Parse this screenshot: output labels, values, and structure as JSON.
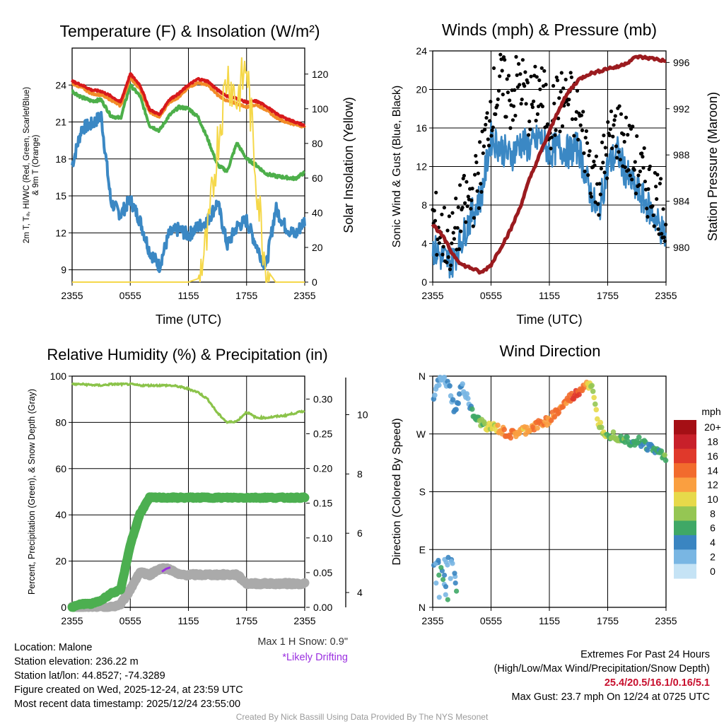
{
  "panels": {
    "temp": {
      "title": "Temperature (F) & Insolation (W/m²)",
      "ylabel_line1": "2m T, Tₐ, HI/WC (Red, Green, Scarlet/Blue)",
      "ylabel_line2": "& 9m T (Orange)",
      "y2label": "Solar Insolation (Yellow)",
      "xlabel": "Time (UTC)",
      "yticks": [
        9,
        12,
        15,
        18,
        21,
        24
      ],
      "ylim": [
        8,
        27
      ],
      "y2ticks": [
        0,
        20,
        40,
        60,
        80,
        100,
        120
      ],
      "y2lim": [
        0,
        135
      ]
    },
    "wind": {
      "title": "Winds (mph) & Pressure (mb)",
      "ylabel": "Sonic Wind & Gust (Blue, Black)",
      "y2label": "Station Pressure (Maroon)",
      "xlabel": "Time (UTC)",
      "yticks": [
        0,
        4,
        8,
        12,
        16,
        20,
        24
      ],
      "ylim": [
        0,
        24
      ],
      "y2ticks": [
        980,
        984,
        988,
        992,
        996
      ],
      "y2lim": [
        977,
        997
      ]
    },
    "rh": {
      "title": "Relative Humidity (%) & Precipitation (in)",
      "ylabel": "Percent, Precipitation (Green), & Snow Depth (Gray)",
      "yticks": [
        0,
        20,
        40,
        60,
        80,
        100
      ],
      "ylim": [
        0,
        100
      ],
      "y2ticks": [
        "0.00",
        "0.05",
        "0.10",
        "0.15",
        "0.20",
        "0.25",
        "0.30"
      ],
      "y2lim": [
        0,
        0.333
      ],
      "y3ticks": [
        4,
        6,
        8,
        10
      ],
      "y3lim": [
        3.5,
        11.3
      ]
    },
    "dir": {
      "title": "Wind Direction",
      "ylabel": "Direction (Colored By Speed)",
      "yticks": [
        "N",
        "E",
        "S",
        "W",
        "N"
      ],
      "legend_title": "mph",
      "legend_labels": [
        "20+",
        "18",
        "16",
        "14",
        "12",
        "10",
        "8",
        "6",
        "4",
        "2",
        "0"
      ],
      "legend_colors": [
        "#a50f15",
        "#c8202a",
        "#e0392b",
        "#f26b2d",
        "#fa9f40",
        "#e7d94a",
        "#95c653",
        "#3fa866",
        "#3a85c1",
        "#79b6e3",
        "#c5e3f5"
      ]
    }
  },
  "xticks": [
    "2355",
    "0555",
    "1155",
    "1755",
    "2355"
  ],
  "snow_note": {
    "max_snow": "Max 1 H Snow: 0.9\"",
    "drifting": "*Likely Drifting"
  },
  "station": {
    "location": "Location: Malone",
    "elevation": "Station elevation: 236.22 m",
    "latlon": "Station lat/lon: 44.8527; -74.3289",
    "created": "Figure created on Wed, 2025-12-24, at 23:59 UTC",
    "recent": "Most recent data timestamp: 2025/12/24 23:55:00"
  },
  "extremes": {
    "heading": "Extremes For Past 24 Hours",
    "fields": "(High/Low/Max Wind/Precipitation/Snow Depth)",
    "values": "25.4/20.5/16.1/0.16/5.1",
    "max_gust": "Max Gust: 23.7 mph On 12/24 at 0725 UTC"
  },
  "credit": "Created By Nick Bassill Using Data Provided By The NYS Mesonet",
  "colors": {
    "temp": "#d7191c",
    "temp9m": "#f28c28",
    "dewpoint": "#4daf4a",
    "windchill": "#3b88c4",
    "solar": "#f5d84a",
    "gust": "#000000",
    "pressure": "#9b1b1f",
    "rh": "#8bc34a",
    "precip": "#4caf50",
    "snow": "#aaaaaa",
    "drift": "#9b30e0"
  },
  "chart_data": [
    {
      "type": "line",
      "title": "Temperature (F) & Insolation (W/m²)",
      "xlabel": "Time (UTC)",
      "x": [
        0,
        1,
        2,
        3,
        4,
        5,
        6,
        7,
        8,
        9,
        10,
        11,
        12,
        13,
        14,
        15,
        16,
        17,
        18,
        19,
        20,
        21,
        22,
        23,
        24
      ],
      "series": [
        {
          "name": "2m T (Red)",
          "values": [
            24.3,
            24.0,
            23.6,
            23.5,
            23.1,
            22.6,
            24.9,
            24.0,
            22.0,
            21.6,
            22.8,
            23.3,
            24.0,
            24.5,
            24.3,
            23.6,
            23.1,
            22.9,
            22.6,
            22.7,
            22.3,
            21.7,
            21.3,
            21.0,
            20.7
          ]
        },
        {
          "name": "9m T (Orange)",
          "values": [
            24.1,
            23.8,
            23.3,
            23.2,
            22.8,
            22.3,
            24.6,
            23.7,
            21.8,
            21.4,
            22.6,
            23.0,
            23.8,
            24.2,
            24.0,
            23.2,
            22.7,
            22.5,
            22.2,
            22.4,
            22.0,
            21.4,
            21.0,
            20.8,
            20.6
          ]
        },
        {
          "name": "Dewpoint (Green)",
          "values": [
            23.5,
            23.0,
            22.7,
            22.8,
            21.5,
            21.3,
            24.0,
            23.1,
            20.7,
            20.3,
            21.5,
            22.2,
            22.1,
            21.4,
            19.6,
            17.5,
            17.0,
            19.3,
            18.0,
            17.5,
            16.8,
            16.6,
            16.5,
            16.4,
            16.9
          ]
        },
        {
          "name": "HI/WC (Blue)",
          "values": [
            17.5,
            20.5,
            20.8,
            21.5,
            14.5,
            13.5,
            14.7,
            13.0,
            10.5,
            9.3,
            11.9,
            12.3,
            11.8,
            12.5,
            13.0,
            14.5,
            11.0,
            12.5,
            13.0,
            11.0,
            9.2,
            14.0,
            12.5,
            11.8,
            13.0
          ]
        },
        {
          "name": "Solar Insolation (Yellow, W/m²)",
          "values": [
            0,
            0,
            0,
            0,
            0,
            0,
            0,
            0,
            0,
            0,
            0,
            0,
            0,
            2,
            25,
            80,
            120,
            105,
            125,
            60,
            8,
            0,
            0,
            0,
            0
          ]
        }
      ],
      "ylim": [
        8,
        27
      ],
      "y2lim": [
        0,
        135
      ]
    },
    {
      "type": "line",
      "title": "Winds (mph) & Pressure (mb)",
      "xlabel": "Time (UTC)",
      "x": [
        0,
        1,
        2,
        3,
        4,
        5,
        6,
        7,
        8,
        9,
        10,
        11,
        12,
        13,
        14,
        15,
        16,
        17,
        18,
        19,
        20,
        21,
        22,
        23,
        24
      ],
      "series": [
        {
          "name": "Sonic Wind (Blue)",
          "values": [
            3.5,
            2.5,
            2.0,
            4.5,
            7.0,
            9.0,
            15.0,
            14.0,
            13.0,
            14.5,
            14.0,
            15.0,
            13.5,
            14.0,
            13.5,
            14.0,
            10.0,
            7.0,
            12.0,
            13.5,
            11.0,
            9.5,
            8.0,
            6.5,
            4.5
          ]
        },
        {
          "name": "Gust (Black)",
          "values": [
            6.5,
            5.0,
            4.0,
            7.5,
            8.5,
            12.0,
            18.5,
            20.5,
            19.0,
            21.0,
            18.0,
            20.0,
            17.0,
            18.5,
            19.0,
            17.0,
            13.0,
            10.0,
            14.0,
            16.0,
            14.0,
            12.0,
            10.0,
            9.0,
            7.0
          ]
        },
        {
          "name": "Station Pressure (Maroon, mb)",
          "values": [
            982.0,
            981.0,
            979.5,
            978.5,
            978.2,
            977.8,
            978.5,
            980.0,
            981.5,
            983.5,
            986.0,
            988.0,
            990.0,
            992.0,
            993.5,
            994.5,
            995.0,
            995.2,
            995.5,
            995.6,
            996.0,
            996.5,
            996.4,
            996.3,
            996.1
          ]
        }
      ],
      "ylim": [
        0,
        24
      ],
      "y2lim": [
        977,
        997
      ]
    },
    {
      "type": "line",
      "title": "Relative Humidity (%) & Precipitation (in)",
      "x": [
        0,
        1,
        2,
        3,
        4,
        5,
        6,
        7,
        8,
        9,
        10,
        11,
        12,
        13,
        14,
        15,
        16,
        17,
        18,
        19,
        20,
        21,
        22,
        23,
        24
      ],
      "series": [
        {
          "name": "Relative Humidity (%)",
          "values": [
            96.5,
            96.5,
            96.2,
            96.0,
            96.5,
            96.5,
            96.5,
            96.0,
            96.0,
            96.0,
            96.0,
            95.5,
            94.5,
            93.0,
            90.0,
            84.0,
            80.0,
            80.5,
            84.5,
            82.0,
            82.0,
            82.5,
            83.0,
            84.0,
            85.0
          ]
        },
        {
          "name": "Precipitation (in)",
          "values": [
            0.0,
            0.005,
            0.005,
            0.01,
            0.02,
            0.025,
            0.09,
            0.135,
            0.158,
            0.158,
            0.158,
            0.158,
            0.158,
            0.158,
            0.158,
            0.158,
            0.158,
            0.158,
            0.158,
            0.158,
            0.158,
            0.158,
            0.158,
            0.158,
            0.158
          ]
        },
        {
          "name": "Snow Depth (in)",
          "values": [
            3.5,
            3.5,
            3.5,
            3.5,
            3.5,
            3.6,
            4.1,
            4.7,
            4.6,
            4.8,
            4.8,
            4.6,
            4.6,
            4.6,
            4.6,
            4.6,
            4.6,
            4.6,
            4.3,
            4.3,
            4.3,
            4.3,
            4.3,
            4.3,
            4.3
          ]
        }
      ],
      "ylim": [
        0,
        100
      ],
      "y2lim": [
        0,
        0.333
      ],
      "y3lim": [
        3.5,
        11.3
      ]
    },
    {
      "type": "scatter",
      "title": "Wind Direction",
      "ylabel": "Direction (Colored By Speed)",
      "yticks": [
        "N",
        "E",
        "S",
        "W",
        "N"
      ],
      "x": [
        0.2,
        0.6,
        1.0,
        1.5,
        2.0,
        2.4,
        2.8,
        3.4,
        4.0,
        4.6,
        5.2,
        5.8,
        6.4,
        7.0,
        7.6,
        8.2,
        8.8,
        9.4,
        10.0,
        10.6,
        11.2,
        11.8,
        12.4,
        13.0,
        13.6,
        14.2,
        14.8,
        15.4,
        16.0,
        16.6,
        17.2,
        17.8,
        18.4,
        19.0,
        19.6,
        20.2,
        20.8,
        21.4,
        22.0,
        22.6,
        23.2,
        23.8
      ],
      "direction_deg": [
        320,
        350,
        355,
        340,
        300,
        345,
        330,
        300,
        290,
        285,
        280,
        280,
        275,
        270,
        268,
        272,
        275,
        278,
        282,
        285,
        290,
        298,
        305,
        315,
        325,
        330,
        340,
        350,
        340,
        290,
        275,
        270,
        268,
        265,
        262,
        258,
        260,
        255,
        250,
        245,
        240,
        235
      ],
      "speed_mph": [
        3,
        2,
        2,
        3,
        4,
        3,
        2,
        6,
        7,
        8,
        9,
        10,
        12,
        14,
        14,
        12,
        11,
        12,
        13,
        14,
        12,
        13,
        14,
        13,
        14,
        16,
        14,
        12,
        8,
        10,
        9,
        7,
        8,
        7,
        6,
        5,
        6,
        5,
        4,
        5,
        6,
        7
      ]
    }
  ]
}
